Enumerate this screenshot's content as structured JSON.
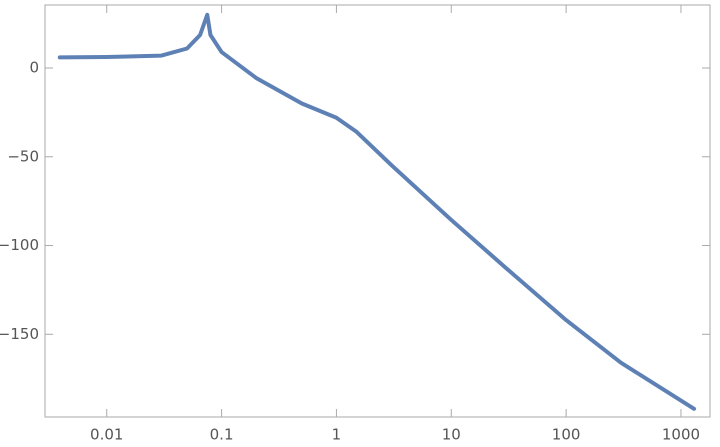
{
  "chart_data": {
    "type": "line",
    "xlog": true,
    "x": [
      0.0039,
      0.01,
      0.03,
      0.05,
      0.065,
      0.075,
      0.08,
      0.1,
      0.2,
      0.5,
      1,
      1.5,
      3,
      10,
      30,
      100,
      300,
      1300
    ],
    "series": [
      {
        "color": "#5e81b5",
        "values": [
          6,
          6.2,
          7,
          11,
          18.6,
          30,
          18.6,
          9,
          -5.6,
          -20,
          -28,
          -36,
          -54.6,
          -85.6,
          -112.7,
          -142,
          -166,
          -192
        ]
      }
    ],
    "xlim": [
      0.0029,
      1790
    ],
    "ylim": [
      -196.6,
      35.5
    ],
    "xticks": [
      0.01,
      0.1,
      1,
      10,
      100,
      1000
    ],
    "yticks": [
      {
        "value": 0,
        "label": "0"
      },
      {
        "value": -50,
        "label": "−50"
      },
      {
        "value": -100,
        "label": "−100"
      },
      {
        "value": -150,
        "label": "−150"
      }
    ]
  }
}
